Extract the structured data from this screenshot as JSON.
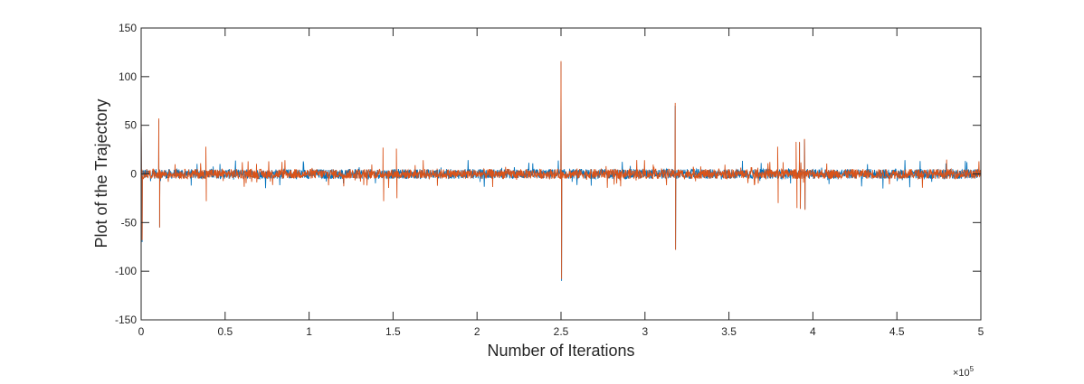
{
  "chart_data": {
    "type": "line",
    "xlabel": "Number of Iterations",
    "ylabel": "Plot of the Trajectory",
    "x_exponent_label": "×10",
    "x_exponent_power": "5",
    "xlim": [
      0,
      500000
    ],
    "ylim": [
      -150,
      150
    ],
    "xticks": [
      0,
      50000,
      100000,
      150000,
      200000,
      250000,
      300000,
      350000,
      400000,
      450000,
      500000
    ],
    "xtick_labels": [
      "0",
      "0.5",
      "1",
      "1.5",
      "2",
      "2.5",
      "3",
      "3.5",
      "4",
      "4.5",
      "5"
    ],
    "yticks": [
      150,
      100,
      50,
      0,
      -50,
      -100,
      -150
    ],
    "ytick_labels": [
      "150",
      "100",
      "50",
      "0",
      "-50",
      "-100",
      "-150"
    ],
    "grid": false,
    "noise_band": 5,
    "series": [
      {
        "color": "#0072BD",
        "spikes": [
          {
            "x": 0,
            "y": 60
          },
          {
            "x": 600,
            "y": -70
          },
          {
            "x": 10500,
            "y": 55
          },
          {
            "x": 11000,
            "y": -55
          },
          {
            "x": 250000,
            "y": 115
          },
          {
            "x": 250300,
            "y": -110
          },
          {
            "x": 318000,
            "y": 70
          },
          {
            "x": 318200,
            "y": -78
          },
          {
            "x": 392000,
            "y": 32
          },
          {
            "x": 392500,
            "y": -35
          },
          {
            "x": 395000,
            "y": 35
          },
          {
            "x": 395300,
            "y": -36
          }
        ]
      },
      {
        "color": "#D95319",
        "spikes": [
          {
            "x": 0,
            "y": 70
          },
          {
            "x": 600,
            "y": -68
          },
          {
            "x": 10500,
            "y": 57
          },
          {
            "x": 11000,
            "y": -55
          },
          {
            "x": 38500,
            "y": 28
          },
          {
            "x": 38800,
            "y": -28
          },
          {
            "x": 144000,
            "y": 27
          },
          {
            "x": 144400,
            "y": -28
          },
          {
            "x": 152000,
            "y": 26
          },
          {
            "x": 152300,
            "y": -25
          },
          {
            "x": 250000,
            "y": 116
          },
          {
            "x": 250300,
            "y": -108
          },
          {
            "x": 318000,
            "y": 73
          },
          {
            "x": 318200,
            "y": -78
          },
          {
            "x": 379000,
            "y": 28
          },
          {
            "x": 379300,
            "y": -30
          },
          {
            "x": 390000,
            "y": 33
          },
          {
            "x": 390500,
            "y": -35
          },
          {
            "x": 392000,
            "y": 33
          },
          {
            "x": 392500,
            "y": -36
          },
          {
            "x": 395000,
            "y": 36
          },
          {
            "x": 395300,
            "y": -37
          }
        ]
      }
    ]
  }
}
